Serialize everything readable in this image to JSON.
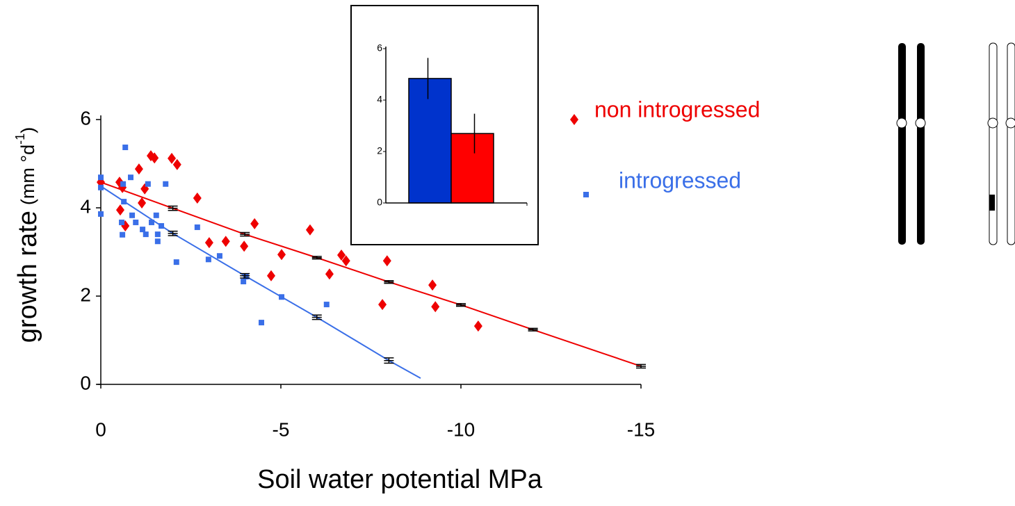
{
  "chart_data": [
    {
      "type": "scatter",
      "xlabel": "Soil water potential MPa",
      "ylabel": "growth rate",
      "ylabel_units": "(mm °d",
      "ylabel_units_sup": "-1",
      "ylabel_units_end": ")",
      "xlim": [
        0,
        -15
      ],
      "xticks": [
        0,
        -5,
        -10,
        -15
      ],
      "ylim": [
        0,
        6
      ],
      "yticks": [
        0,
        2,
        4,
        6
      ],
      "series": [
        {
          "name": "non introgressed",
          "color": "#ee0000",
          "marker": "diamond",
          "x": [
            0,
            -0.52,
            -0.6,
            -0.54,
            -0.68,
            -1.06,
            -1.14,
            -1.22,
            -1.39,
            -1.49,
            -1.97,
            -2.12,
            -2.68,
            -3.01,
            -3.47,
            -3.98,
            -4.27,
            -4.73,
            -5.02,
            -5.81,
            -6.35,
            -6.68,
            -6.81,
            -7.95,
            -7.82,
            -9.21,
            -9.29,
            -10.48
          ],
          "values": [
            4.58,
            4.58,
            4.46,
            3.95,
            3.59,
            4.88,
            4.11,
            4.43,
            5.18,
            5.13,
            5.12,
            4.98,
            4.22,
            3.21,
            3.24,
            3.13,
            3.64,
            2.46,
            2.94,
            3.5,
            2.5,
            2.93,
            2.8,
            2.8,
            1.81,
            2.25,
            1.76,
            1.32
          ],
          "fit": {
            "x": [
              0,
              -2,
              -4,
              -6,
              -8,
              -10,
              -12,
              -15
            ],
            "values": [
              4.58,
              3.99,
              3.4,
              2.87,
              2.32,
              1.8,
              1.24,
              0.41
            ],
            "errors": [
              null,
              0.05,
              0.04,
              0.03,
              0.03,
              0.03,
              0.03,
              0.04
            ]
          }
        },
        {
          "name": "introgressed",
          "color": "#3a6fe8",
          "marker": "square",
          "x": [
            0,
            0,
            0,
            -0.68,
            -0.62,
            -0.64,
            -0.58,
            -0.6,
            -0.83,
            -0.87,
            -0.97,
            -1.16,
            -1.25,
            -1.31,
            -1.41,
            -1.58,
            -1.8,
            -1.68,
            -1.58,
            -2.1,
            -2.68,
            -2.99,
            -3.3,
            -3.96,
            -4.03,
            -4.46,
            -5.02,
            -6.27,
            -1.54
          ],
          "values": [
            4.69,
            4.46,
            3.86,
            5.37,
            4.54,
            4.14,
            3.67,
            3.39,
            4.69,
            3.83,
            3.67,
            3.51,
            3.4,
            4.54,
            3.67,
            3.4,
            4.54,
            3.59,
            3.24,
            2.77,
            3.56,
            2.83,
            2.91,
            2.33,
            2.44,
            1.4,
            1.98,
            1.81,
            3.83
          ],
          "fit": {
            "x": [
              0,
              -2,
              -4,
              -6,
              -8,
              -8.88
            ],
            "values": [
              4.49,
              3.42,
              2.46,
              1.52,
              0.54,
              0.14
            ],
            "errors": [
              null,
              0.05,
              0.05,
              0.05,
              0.06,
              null
            ]
          }
        }
      ]
    },
    {
      "type": "bar",
      "categories": [
        null,
        null
      ],
      "values": [
        4.84,
        2.7
      ],
      "errors": [
        0.8,
        0.77
      ],
      "colors": [
        "#0033cc",
        "#ff0000"
      ],
      "ylim": [
        0,
        6
      ],
      "yticks": [
        0,
        2,
        4,
        6
      ]
    }
  ]
}
